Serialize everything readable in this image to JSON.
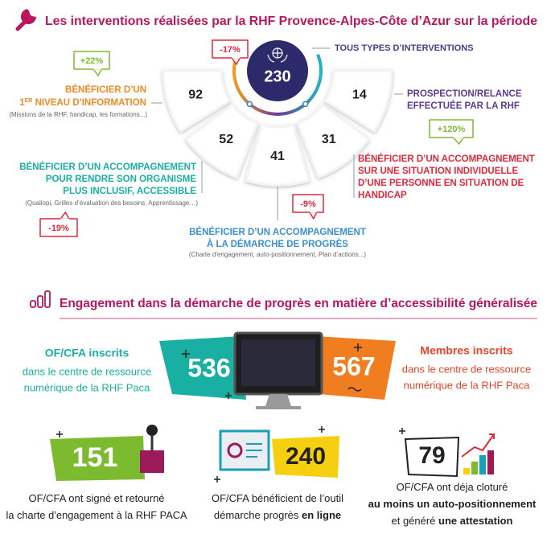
{
  "section1": {
    "title": "Les interventions réalisées par la RHF Provence-Alpes-Côte d’Azur sur la période",
    "total": {
      "value": "230",
      "change": "-17%",
      "label": "TOUS TYPES D’INTERVENTIONS"
    },
    "items": [
      {
        "value": "92",
        "change": "+22%",
        "label": [
          "BÉNÉFICIER D’UN"
        ],
        "label_ordinal": [
          "1",
          "ER",
          " NIVEAU D’INFORMATION"
        ],
        "note": "(Missions de la RHF, handicap, les formations...)"
      },
      {
        "value": "52",
        "change": "-19%",
        "label": [
          "BÉNÉFICIER D’UN ACCOMPAGNEMENT",
          "POUR RENDRE SON ORGANISME",
          "PLUS INCLUSIF, ACCESSIBLE"
        ],
        "note": "(Qualiopi, Grilles d’évaluation des besoins, Apprentissage…)"
      },
      {
        "value": "41",
        "change": "-9%",
        "label": [
          "BÉNÉFICIER D’UN ACCOMPAGNEMENT",
          "À LA DÉMARCHE DE PROGRÈS"
        ],
        "note": "(Charte d’engagement, auto-positionnement, Plan d’actions...)"
      },
      {
        "value": "31",
        "change": "+120%",
        "label": [
          "BÉNÉFICIER D’UN ACCOMPAGNEMENT",
          "SUR UNE SITUATION INDIVIDUELLE",
          "D’UNE PERSONNE EN SITUATION DE",
          "HANDICAP"
        ]
      },
      {
        "value": "14",
        "label": [
          "PROSPECTION/RELANCE",
          "EFFECTUÉE PAR LA RHF"
        ]
      }
    ]
  },
  "section2": {
    "title": "Engagement dans la démarche de progrès en matière d’accessibilité généralisée",
    "stats": [
      {
        "value": "536",
        "title": "OF/CFA inscrits",
        "lines": [
          "dans le centre de ressource",
          "numérique de la RHF Paca"
        ]
      },
      {
        "value": "567",
        "title": "Membres inscrits",
        "lines": [
          "dans le centre de ressource",
          "numérique de la RHF Paca"
        ]
      },
      {
        "value": "151",
        "lines": [
          [
            {
              "text": "OF/CFA ont signé et retourné"
            }
          ],
          [
            {
              "text": "la charte d’engagement à la RHF PACA"
            }
          ]
        ]
      },
      {
        "value": "240",
        "lines": [
          [
            {
              "text": "OF/CFA bénéficient de l’outil"
            }
          ],
          [
            {
              "text": "démarche progrès "
            },
            {
              "text": "en ligne",
              "bold": true
            }
          ]
        ]
      },
      {
        "value": "79",
        "lines": [
          [
            {
              "text": "OF/CFA ont déja cloturé"
            }
          ],
          [
            {
              "text": "au moins un auto-positionnement",
              "bold": true
            }
          ],
          [
            {
              "text": "et généré "
            },
            {
              "text": "une attestation",
              "bold": true
            }
          ]
        ]
      }
    ]
  }
}
